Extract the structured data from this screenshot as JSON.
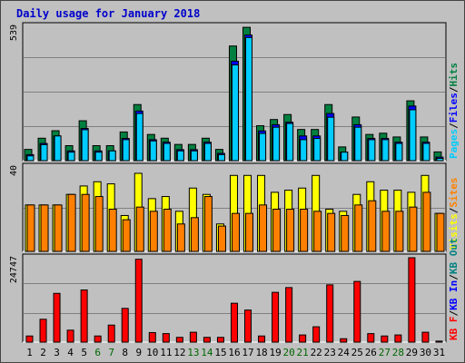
{
  "chart_data": {
    "type": "bar",
    "title": "Daily usage for January 2018",
    "days": [
      "1",
      "2",
      "3",
      "4",
      "5",
      "6",
      "7",
      "8",
      "9",
      "10",
      "11",
      "12",
      "13",
      "14",
      "15",
      "16",
      "17",
      "18",
      "19",
      "20",
      "21",
      "22",
      "23",
      "24",
      "25",
      "26",
      "27",
      "28",
      "29",
      "30",
      "31"
    ],
    "weekend_days": [
      "6",
      "7",
      "13",
      "14",
      "20",
      "21",
      "27",
      "28"
    ],
    "colors": {
      "title": "#0000cc",
      "weekday_label": "#000000",
      "weekend_label": "#006600",
      "pages": "#00ccff",
      "files": "#0000ff",
      "hits": "#008040",
      "visits": "#ffff00",
      "sites": "#ff8000",
      "kb_out": "#008080",
      "kb_in": "#0000ff",
      "kb_f": "#ff0000",
      "plot_bg": "#c0c0c0"
    },
    "panels": [
      {
        "id": "hits",
        "y_max_label": "539",
        "y_max": 539,
        "legend": [
          {
            "text": "Pages",
            "color": "#00ccff"
          },
          {
            "text": "Files",
            "color": "#0000ff"
          },
          {
            "text": "Hits",
            "color": "#008040"
          }
        ],
        "series": [
          {
            "name": "Hits",
            "values": [
              45,
              90,
              120,
              60,
              160,
              60,
              60,
              115,
              225,
              105,
              90,
              65,
              65,
              90,
              45,
              460,
              535,
              140,
              165,
              185,
              125,
              125,
              225,
              55,
              175,
              105,
              110,
              95,
              240,
              95,
              35
            ]
          },
          {
            "name": "Files",
            "values": [
              35,
              80,
              110,
              50,
              140,
              50,
              50,
              100,
              210,
              95,
              85,
              55,
              55,
              85,
              40,
              410,
              515,
              130,
              155,
              165,
              110,
              110,
              200,
              45,
              155,
              100,
              100,
              85,
              230,
              85,
              25
            ]
          },
          {
            "name": "Pages",
            "values": [
              30,
              75,
              110,
              45,
              135,
              45,
              50,
              95,
              200,
              90,
              80,
              50,
              50,
              80,
              35,
              395,
              505,
              120,
              145,
              160,
              95,
              100,
              185,
              45,
              145,
              95,
              95,
              80,
              215,
              80,
              20
            ]
          }
        ]
      },
      {
        "id": "visits",
        "y_max_label": "40",
        "y_max": 40,
        "legend": [
          {
            "text": "Visits",
            "color": "#ffff00"
          },
          {
            "text": "Sites",
            "color": "#ff8000"
          }
        ],
        "series": [
          {
            "name": "Visits",
            "values": [
              22,
              22,
              22,
              27,
              31,
              33,
              32,
              17,
              37,
              25,
              26,
              19,
              30,
              27,
              13,
              36,
              36,
              36,
              28,
              29,
              30,
              36,
              20,
              19,
              27,
              33,
              29,
              29,
              28,
              36,
              18
            ]
          },
          {
            "name": "Sites",
            "values": [
              22,
              22,
              22,
              27,
              27,
              26,
              20,
              15,
              21,
              19,
              20,
              13,
              16,
              26,
              12,
              18,
              18,
              22,
              20,
              20,
              20,
              19,
              18,
              17,
              22,
              24,
              19,
              19,
              21,
              28,
              18
            ]
          }
        ]
      },
      {
        "id": "kbytes",
        "y_max_label": "24747",
        "y_max": 24747,
        "legend": [
          {
            "text": "KB F",
            "color": "#ff0000"
          },
          {
            "text": "KB In",
            "color": "#0000ff"
          },
          {
            "text": "KB Out",
            "color": "#008080"
          }
        ],
        "series": [
          {
            "name": "KB F",
            "values": [
              1800,
              6700,
              14300,
              3500,
              15300,
              1800,
              5000,
              9900,
              24300,
              2800,
              2500,
              1400,
              2900,
              1400,
              1400,
              11400,
              9400,
              1800,
              14600,
              16000,
              2100,
              4500,
              16800,
              1000,
              17800,
              2500,
              1800,
              2100,
              24747,
              2900,
              300
            ]
          }
        ]
      }
    ]
  }
}
